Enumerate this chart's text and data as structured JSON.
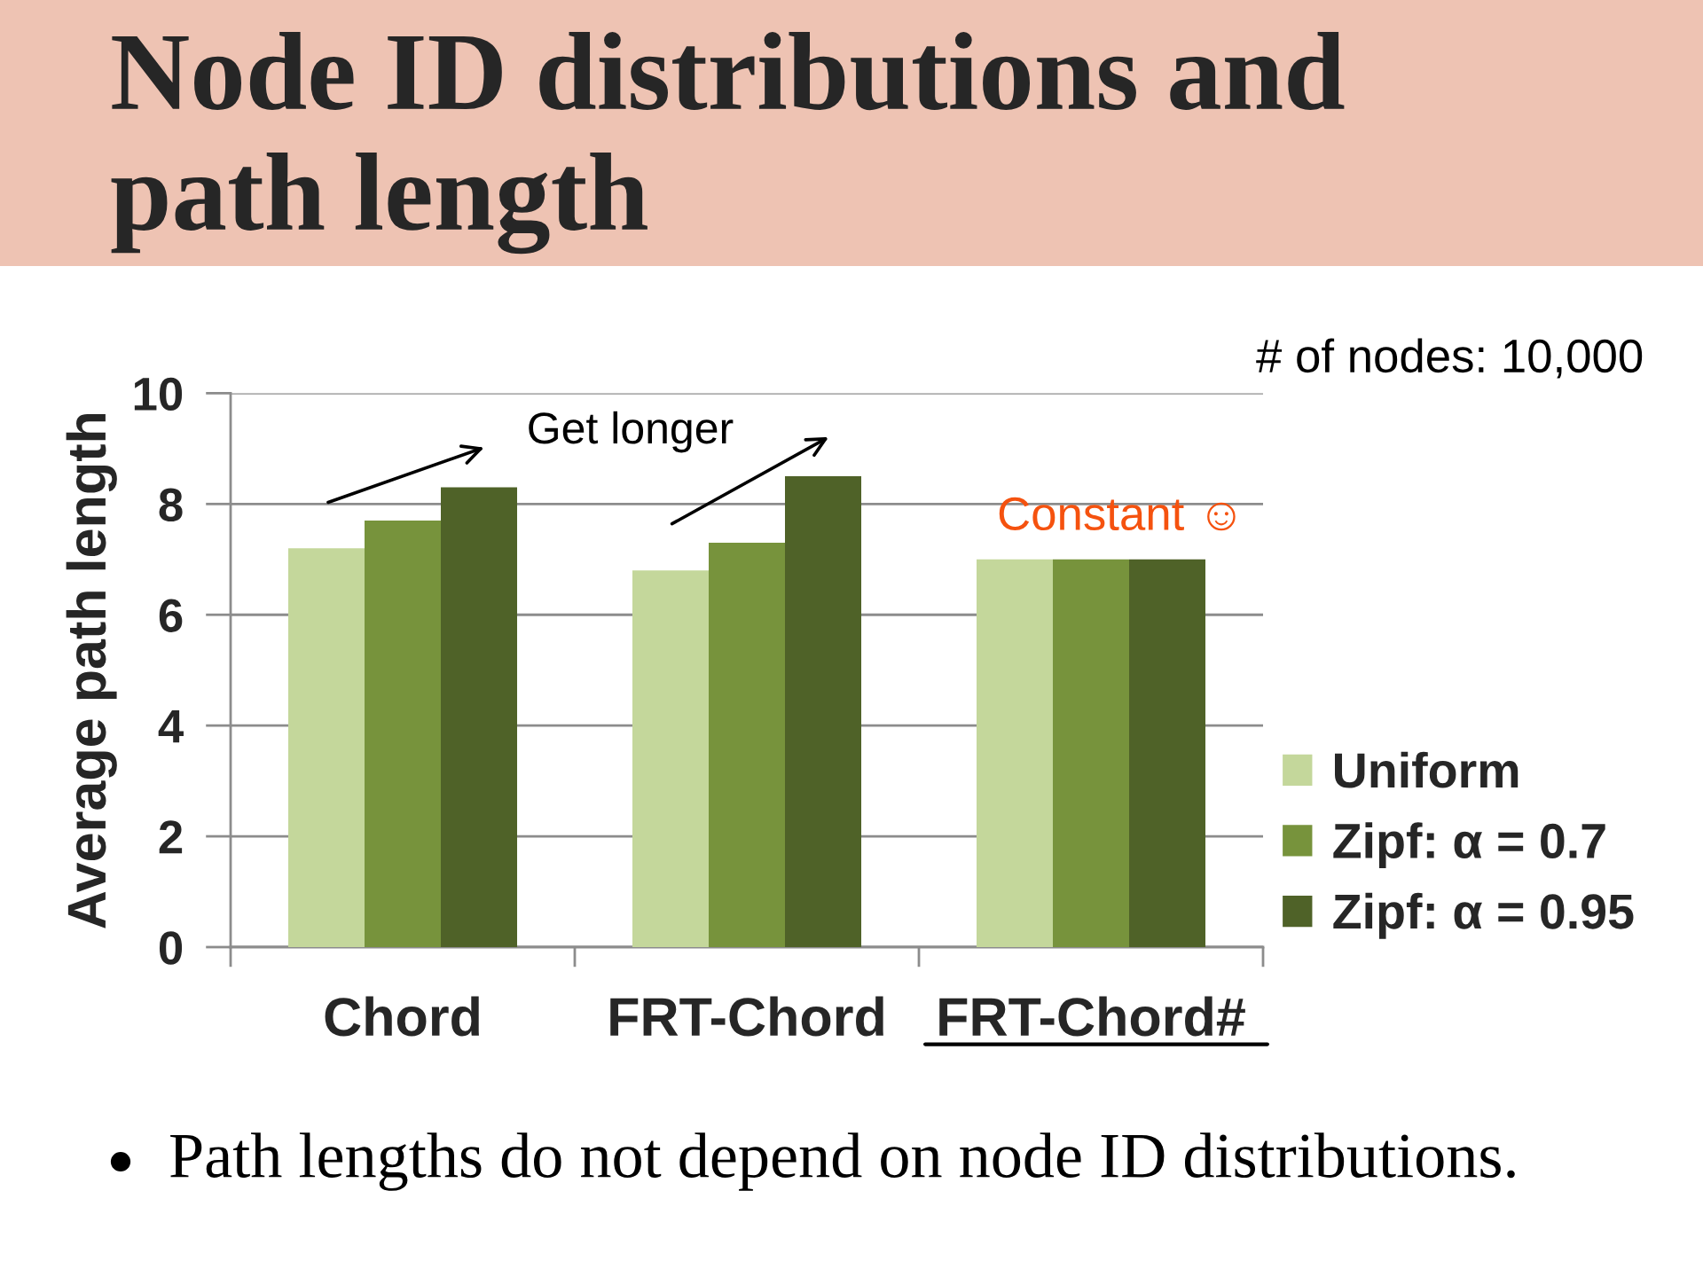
{
  "chart_data": {
    "type": "bar",
    "title": "Node ID distributions and path length",
    "ylabel": "Average path length",
    "categories": [
      "Chord",
      "FRT-Chord",
      "FRT-Chord#"
    ],
    "series": [
      {
        "name": "Uniform",
        "color": "#c4d79b",
        "values": [
          7.2,
          6.8,
          7.0
        ]
      },
      {
        "name": "Zipf: α = 0.7",
        "color": "#77933c",
        "values": [
          7.7,
          7.3,
          7.0
        ]
      },
      {
        "name": "Zipf: α = 0.95",
        "color": "#4f6228",
        "values": [
          8.3,
          8.5,
          7.0
        ]
      }
    ],
    "ylim": [
      0,
      10
    ],
    "yticks": [
      0,
      2,
      4,
      6,
      8,
      10
    ],
    "grid": "y",
    "legend": "bottom right",
    "annotations": [
      "Get longer",
      "Constant ☺",
      "# of nodes: 10,000",
      "Path lengths do not depend on node ID distributions."
    ]
  }
}
